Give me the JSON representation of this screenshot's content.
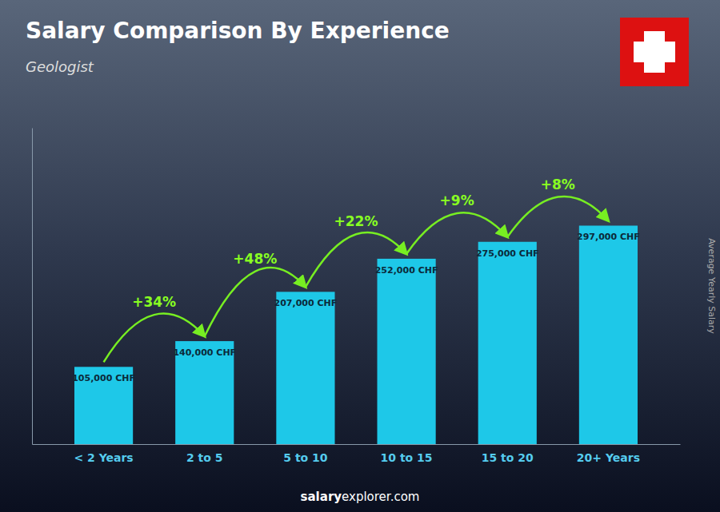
{
  "chart_data": {
    "type": "bar",
    "title": "Salary Comparison By Experience",
    "subtitle": "Geologist",
    "y_label": "Average Yearly Salary",
    "categories": [
      "< 2 Years",
      "2 to 5",
      "5 to 10",
      "10 to 15",
      "15 to 20",
      "20+ Years"
    ],
    "values": [
      105000,
      140000,
      207000,
      252000,
      275000,
      297000
    ],
    "value_labels": [
      "105,000 CHF",
      "140,000 CHF",
      "207,000 CHF",
      "252,000 CHF",
      "275,000 CHF",
      "297,000 CHF"
    ],
    "data_labels": true,
    "color": "#1ec8e8",
    "ylim": [
      0,
      430000
    ],
    "tick_labels": "x",
    "grid": false,
    "annotations": [
      {
        "text": "+34%",
        "x": [
          "< 2 Years",
          "2 to 5"
        ]
      },
      {
        "text": "+48%",
        "x": [
          "2 to 5",
          "5 to 10"
        ]
      },
      {
        "text": "+22%",
        "x": [
          "5 to 10",
          "10 to 15"
        ]
      },
      {
        "text": "+9%",
        "x": [
          "10 to 15",
          "15 to 20"
        ]
      },
      {
        "text": "+8%",
        "x": [
          "15 to 20",
          "20+ Years"
        ]
      },
      {
        "text": "salary"
      },
      {
        "text": "explorer.com"
      }
    ]
  }
}
